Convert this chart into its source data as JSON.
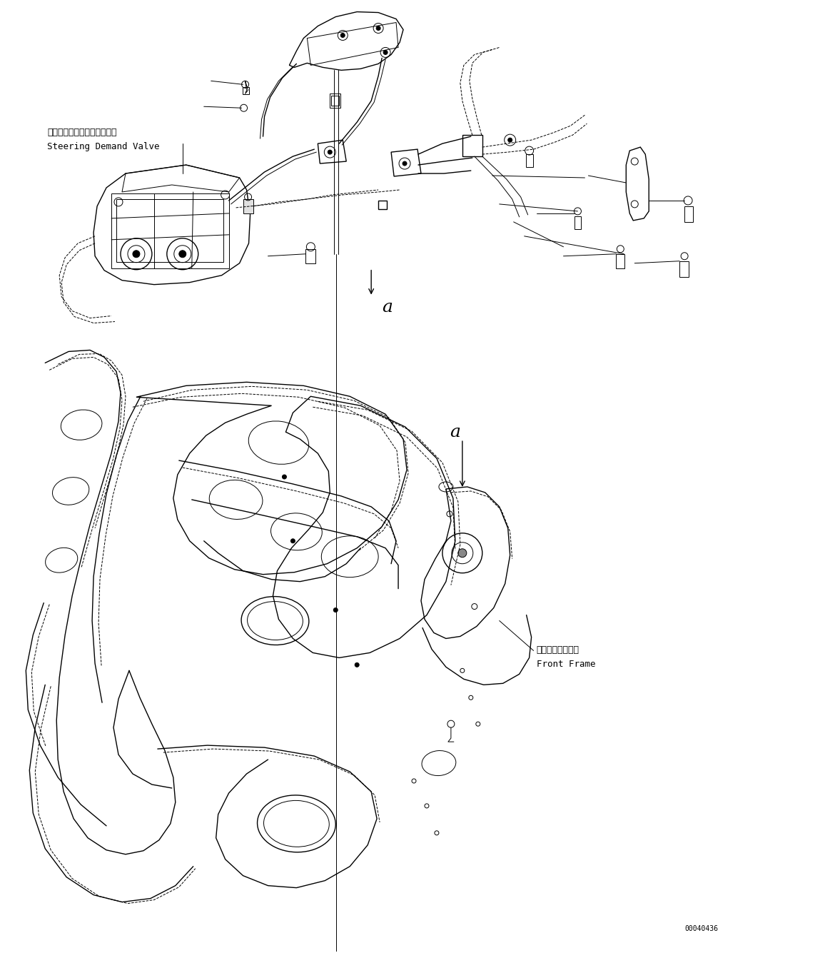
{
  "background_color": "#ffffff",
  "line_color": "#000000",
  "fig_width": 11.63,
  "fig_height": 13.35,
  "dpi": 100,
  "label_steering_jp": "ステアリングデマンドバルブ",
  "label_steering_en": "Steering Demand Valve",
  "label_front_frame_jp": "フロントフレーム",
  "label_front_frame_en": "Front Frame",
  "label_a": "a",
  "part_number": "00040436",
  "font_size_label": 9,
  "font_size_partnumber": 7,
  "font_size_a": 18
}
